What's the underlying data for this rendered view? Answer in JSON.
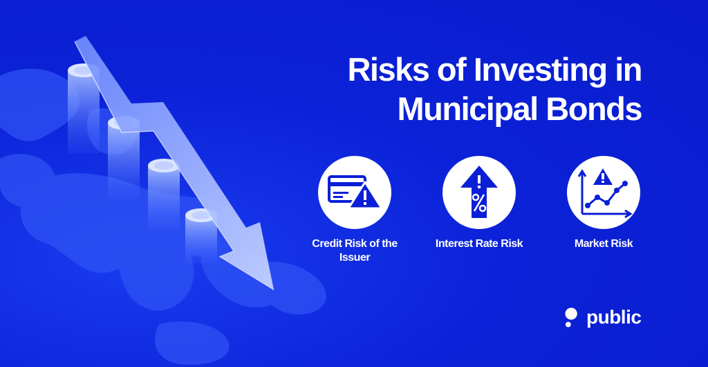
{
  "title": {
    "line1": "Risks of Investing in",
    "line2": "Municipal Bonds"
  },
  "risks": [
    {
      "label": "Credit Risk of the Issuer",
      "icon": "credit-card-warning-icon"
    },
    {
      "label": "Interest Rate Risk",
      "icon": "percent-arrow-up-warning-icon"
    },
    {
      "label": "Market Risk",
      "icon": "line-chart-warning-icon"
    }
  ],
  "brand": {
    "name": "public",
    "icon": "public-logo-icon"
  },
  "colors": {
    "background": "#0b1fd6",
    "text": "#ffffff",
    "icon_fill": "#0b1fd6",
    "circle": "#ffffff"
  }
}
